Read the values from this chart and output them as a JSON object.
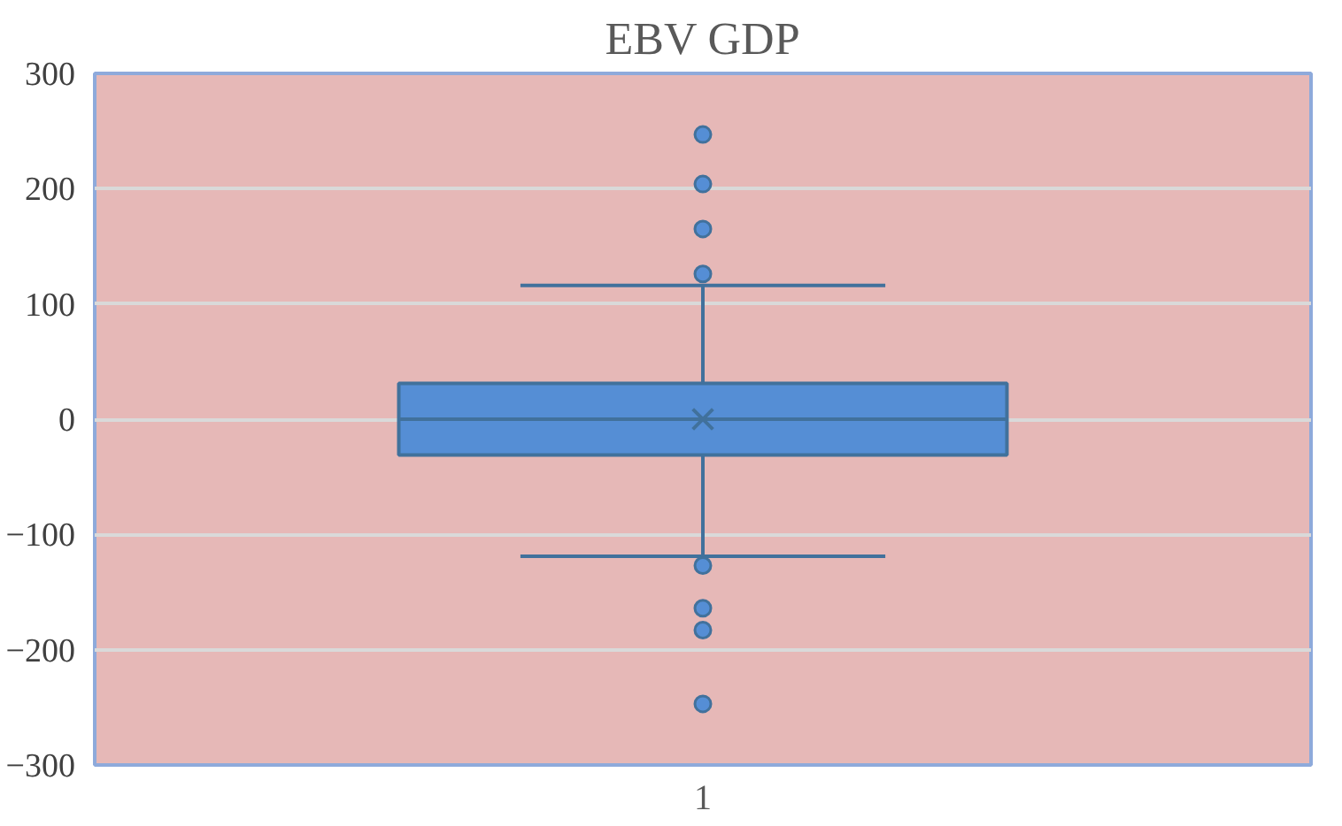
{
  "chart_data": {
    "type": "box",
    "title": "EBV GDP",
    "categories": [
      "1"
    ],
    "boxes": [
      {
        "low": -119,
        "q1": -31,
        "median": 0,
        "q3": 31,
        "high": 116,
        "mean": 0,
        "outliers": [
          247,
          204,
          165,
          126,
          -127,
          -164,
          -183,
          -247
        ]
      }
    ],
    "color": "#558ed5",
    "ylim": [
      -300,
      300
    ],
    "yticks": [
      -300,
      -200,
      -100,
      0,
      100,
      200,
      300
    ],
    "grid": "y",
    "marker": "circle"
  }
}
